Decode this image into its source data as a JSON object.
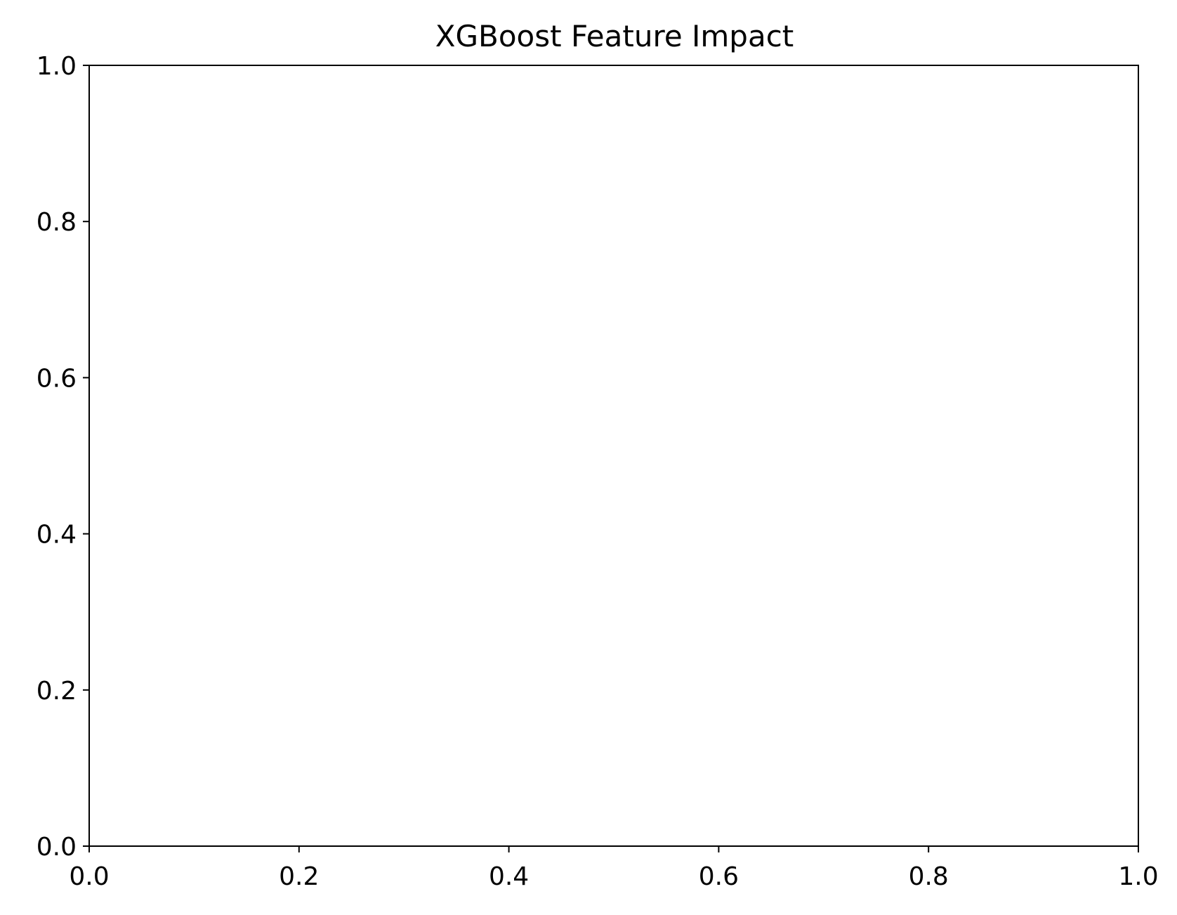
{
  "chart_data": {
    "type": "scatter",
    "title": "XGBoost Feature Impact",
    "xlabel": "",
    "ylabel": "",
    "xlim": [
      0.0,
      1.0
    ],
    "ylim": [
      0.0,
      1.0
    ],
    "x_ticks": [
      "0.0",
      "0.2",
      "0.4",
      "0.6",
      "0.8",
      "1.0"
    ],
    "y_ticks": [
      "0.0",
      "0.2",
      "0.4",
      "0.6",
      "0.8",
      "1.0"
    ],
    "series": [],
    "grid": false,
    "legend": "none"
  },
  "colors": {
    "background": "#ffffff",
    "axes": "#000000",
    "text": "#000000"
  }
}
